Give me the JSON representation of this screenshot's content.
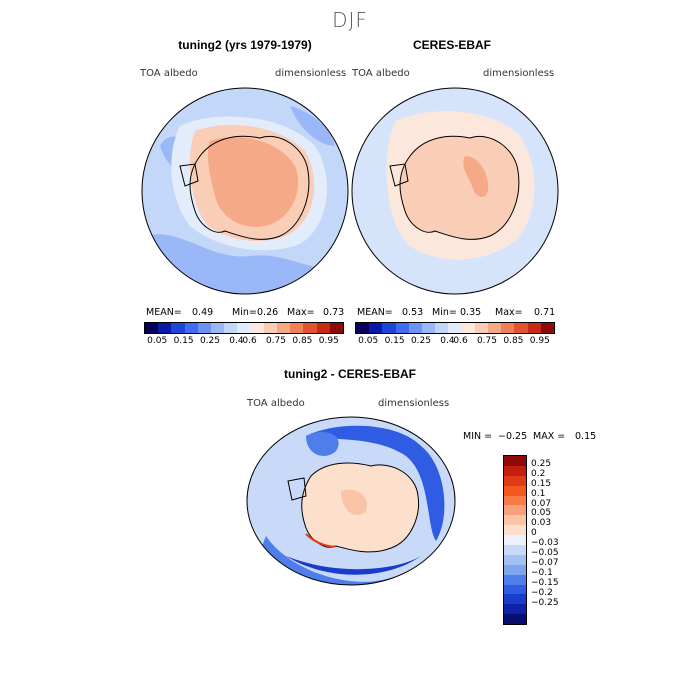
{
  "title": "DJF",
  "panels": {
    "left": {
      "heading": "tuning2 (yrs 1979-1979)",
      "var": "TOA albedo",
      "units": "dimensionless",
      "mean_label": "MEAN=",
      "mean": "0.49",
      "min_label": "Min=",
      "min": "0.26",
      "max_label": "Max=",
      "max": "0.73"
    },
    "right": {
      "heading": "CERES-EBAF",
      "var": "TOA albedo",
      "units": "dimensionless",
      "mean_label": "MEAN=",
      "mean": "0.53",
      "min_label": "Min=",
      "min": "0.35",
      "max_label": "Max=",
      "max": "0.71"
    },
    "diff": {
      "heading": "tuning2 - CERES-EBAF",
      "var": "TOA albedo",
      "units": "dimensionless",
      "min_label": "MIN =",
      "min": "−0.25",
      "max_label": "MAX =",
      "max": "0.15"
    }
  },
  "colorbar_main": {
    "colors": [
      "#08005c",
      "#0a1aa8",
      "#1f45d6",
      "#3f6cf0",
      "#6b93f5",
      "#9ab8f7",
      "#c3d7f9",
      "#e3ecfb",
      "#fbe7dc",
      "#f9cdb6",
      "#f6a987",
      "#f08057",
      "#e05530",
      "#c82a14",
      "#900808"
    ],
    "labels": [
      "0.05",
      "0.15",
      "0.25",
      "0.4",
      "0.6",
      "0.75",
      "0.85",
      "0.95"
    ]
  },
  "colorbar_diff": {
    "colors": [
      "#900808",
      "#c41e10",
      "#e03a16",
      "#f4581c",
      "#f77c46",
      "#f9a07a",
      "#fbc3a5",
      "#fde0cc",
      "#edf1fb",
      "#c8daf8",
      "#a3c1f5",
      "#7ea6f0",
      "#4f7eea",
      "#2f5ce2",
      "#1a3ccc",
      "#0e22a6",
      "#060f72"
    ],
    "labels": [
      "0.25",
      "0.2",
      "0.15",
      "0.1",
      "0.07",
      "0.05",
      "0.03",
      "0",
      "−0.03",
      "−0.05",
      "−0.07",
      "−0.1",
      "−0.15",
      "−0.2",
      "−0.25"
    ]
  }
}
